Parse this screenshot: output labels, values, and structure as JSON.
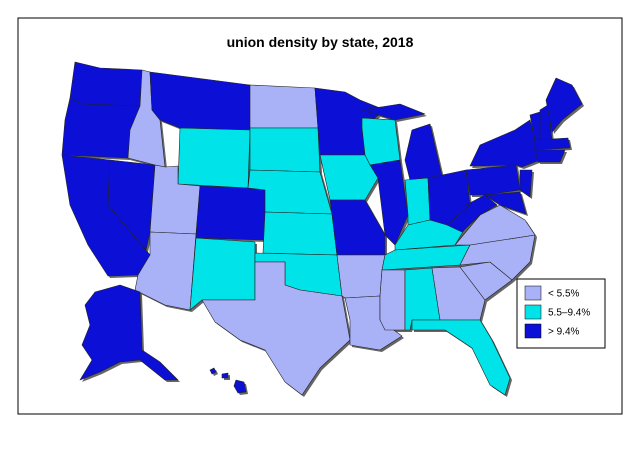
{
  "title": "union density by state, 2018",
  "legend": [
    {
      "label": "< 5.5%",
      "color": "#a9b1f7"
    },
    {
      "label": "5.5–9.4%",
      "color": "#00e3e8"
    },
    {
      "label": "> 9.4%",
      "color": "#0c10d6"
    }
  ]
}
